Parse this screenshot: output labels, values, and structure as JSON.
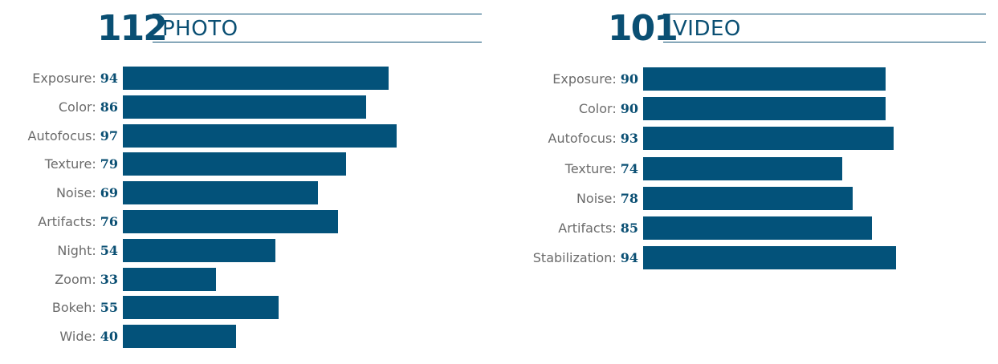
{
  "colors": {
    "bar": "#03527a",
    "accent": "#0a4f73",
    "label": "#6b6b6b"
  },
  "chart_data": [
    {
      "type": "bar",
      "orientation": "horizontal",
      "title": "PHOTO",
      "overall_score": "112",
      "categories": [
        "Exposure",
        "Color",
        "Autofocus",
        "Texture",
        "Noise",
        "Artifacts",
        "Night",
        "Zoom",
        "Bokeh",
        "Wide"
      ],
      "values": [
        94,
        86,
        97,
        79,
        69,
        76,
        54,
        33,
        55,
        40
      ],
      "xlim": [
        0,
        100
      ],
      "grid": false
    },
    {
      "type": "bar",
      "orientation": "horizontal",
      "title": "VIDEO",
      "overall_score": "101",
      "categories": [
        "Exposure",
        "Color",
        "Autofocus",
        "Texture",
        "Noise",
        "Artifacts",
        "Stabilization"
      ],
      "values": [
        90,
        90,
        93,
        74,
        78,
        85,
        94
      ],
      "xlim": [
        0,
        100
      ],
      "grid": false
    }
  ]
}
